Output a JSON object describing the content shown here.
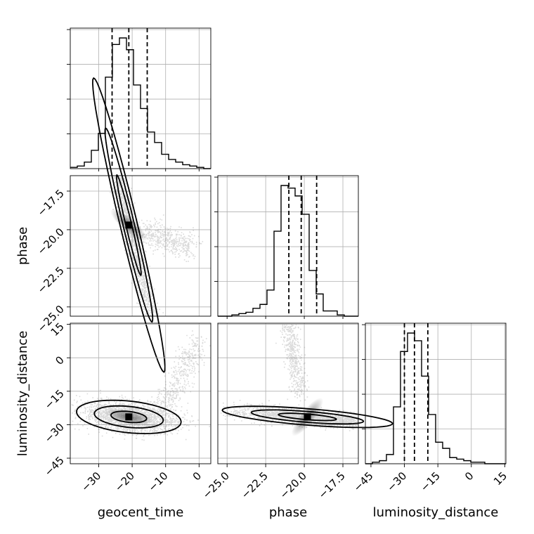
{
  "chart_data": {
    "type": "corner",
    "parameters": [
      "geocent_time",
      "phase",
      "luminosity_distance"
    ],
    "axis_ranges": {
      "geocent_time": [
        -38.5,
        3.5
      ],
      "phase": [
        -25.6,
        -16.5
      ],
      "luminosity_distance": [
        -47.5,
        15.5
      ]
    },
    "ticks": {
      "geocent_time": [
        -30,
        -20,
        -10,
        0
      ],
      "phase": [
        -25.0,
        -22.5,
        -20.0,
        -17.5
      ],
      "luminosity_distance": [
        -45,
        -30,
        -15,
        0,
        15
      ]
    },
    "tick_labels": {
      "geocent_time": [
        "−30",
        "−20",
        "−10",
        "0"
      ],
      "phase": [
        "−25.0",
        "−22.5",
        "−20.0",
        "−17.5"
      ],
      "luminosity_distance": [
        "−45",
        "−30",
        "−15",
        "0",
        "15"
      ]
    },
    "quantiles": {
      "geocent_time": [
        -26,
        -21,
        -15.5
      ],
      "phase": [
        -21.0,
        -20.2,
        -19.2
      ],
      "luminosity_distance": [
        -30,
        -25.5,
        -19.5
      ]
    },
    "histograms": {
      "geocent_time": {
        "bin_edges": [
          -38.5,
          -36.4,
          -34.3,
          -32.2,
          -30.1,
          -28.0,
          -25.9,
          -23.8,
          -21.7,
          -19.6,
          -17.5,
          -15.4,
          -13.3,
          -11.2,
          -9.1,
          -7.0,
          -4.9,
          -2.8,
          -0.7,
          1.4,
          3.5
        ],
        "counts": [
          1,
          2,
          5,
          14,
          27,
          70,
          95,
          100,
          91,
          64,
          46,
          28,
          20,
          11,
          7,
          5,
          3,
          2,
          1,
          0
        ]
      },
      "phase": {
        "bin_edges": [
          -25.6,
          -25.145,
          -24.69,
          -24.235,
          -23.78,
          -23.325,
          -22.87,
          -22.415,
          -21.96,
          -21.505,
          -21.05,
          -20.595,
          -20.14,
          -19.685,
          -19.23,
          -18.775,
          -18.32,
          -17.865,
          -17.41,
          -16.955,
          -16.5
        ],
        "counts": [
          0,
          0,
          1,
          2,
          3,
          6,
          9,
          20,
          65,
          100,
          98,
          92,
          78,
          35,
          17,
          4,
          4,
          1,
          0,
          0
        ]
      },
      "luminosity_distance": {
        "bin_edges": [
          -47.5,
          -44.35,
          -41.2,
          -38.05,
          -34.9,
          -31.75,
          -28.6,
          -25.45,
          -22.3,
          -19.15,
          -16.0,
          -12.85,
          -9.7,
          -6.55,
          -3.4,
          -0.25,
          2.9,
          6.05,
          9.2,
          12.35,
          15.5
        ],
        "counts": [
          0,
          1,
          2,
          6,
          37,
          73,
          85,
          80,
          57,
          32,
          14,
          10,
          4,
          3,
          2,
          1,
          1,
          0,
          0,
          0
        ]
      }
    },
    "peaks_2d": {
      "phase_vs_geocent_time": {
        "x": -21,
        "y": -19.7
      },
      "luminosity_distance_vs_geocent_time": {
        "x": -21,
        "y": -26.5
      },
      "luminosity_distance_vs_phase": {
        "x": -19.8,
        "y": -26.5
      }
    },
    "grid": true,
    "color": "#000000"
  }
}
